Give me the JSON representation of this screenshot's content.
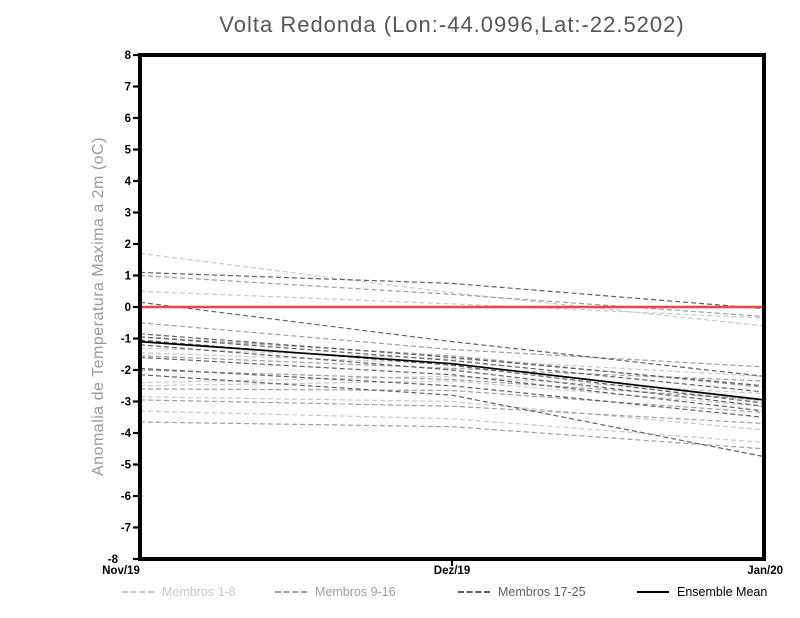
{
  "page": {
    "background": "#ffffff"
  },
  "chart_data": {
    "type": "line",
    "title": "Volta Redonda (Lon:-44.0996,Lat:-22.5202)",
    "ylabel": "Anomalia de Temperatura Maxima a 2m (oC)",
    "xlabel": "",
    "x_ticklabels": [
      "Nov/19",
      "Dez/19",
      "Jan/20"
    ],
    "y_ticklabels": [
      "8",
      "7",
      "6",
      "5",
      "4",
      "3",
      "2",
      "1",
      "0",
      "-1",
      "-2",
      "-3",
      "-4",
      "-5",
      "-6",
      "-7",
      "-8"
    ],
    "ylim": [
      -8,
      8
    ],
    "grid": false,
    "legend_position": "bottom",
    "axis_color": "#000000",
    "zero_line": {
      "value": 0,
      "color": "#f04545"
    },
    "series_groups": [
      {
        "name": "Membros 1-8",
        "color": "#c9c9c9",
        "style": "dashed",
        "members": [
          [
            1.7,
            0.45,
            -0.6
          ],
          [
            0.5,
            0.1,
            -0.35
          ],
          [
            -1.3,
            -1.65,
            -2.2
          ],
          [
            -1.45,
            -1.8,
            -3.0
          ],
          [
            -2.4,
            -2.2,
            -2.75
          ],
          [
            -2.5,
            -2.35,
            -3.15
          ],
          [
            -2.85,
            -3.0,
            -3.9
          ],
          [
            -3.3,
            -3.55,
            -4.3
          ]
        ]
      },
      {
        "name": "Membros 9-16",
        "color": "#9e9e9e",
        "style": "dashed",
        "members": [
          [
            1.0,
            0.4,
            -0.3
          ],
          [
            -0.5,
            -1.35,
            -1.9
          ],
          [
            -0.95,
            -1.55,
            -2.55
          ],
          [
            -1.55,
            -1.95,
            -2.35
          ],
          [
            -2.0,
            -2.3,
            -2.95
          ],
          [
            -2.6,
            -2.65,
            -3.35
          ],
          [
            -2.95,
            -3.15,
            -3.7
          ],
          [
            -3.65,
            -3.8,
            -4.5
          ]
        ]
      },
      {
        "name": "Membros 17-25",
        "color": "#606060",
        "style": "dashed",
        "members": [
          [
            1.1,
            0.75,
            -0.05
          ],
          [
            0.15,
            -1.1,
            -2.2
          ],
          [
            -0.85,
            -1.6,
            -2.5
          ],
          [
            -0.95,
            -1.7,
            -2.7
          ],
          [
            -1.05,
            -1.85,
            -3.05
          ],
          [
            -1.2,
            -2.0,
            -3.15
          ],
          [
            -1.6,
            -2.15,
            -3.3
          ],
          [
            -1.95,
            -2.5,
            -3.5
          ],
          [
            -2.15,
            -2.8,
            -4.75
          ]
        ]
      },
      {
        "name": "Ensemble Mean",
        "color": "#000000",
        "style": "solid",
        "members": [
          [
            -1.1,
            -1.8,
            -2.95
          ]
        ]
      }
    ]
  }
}
